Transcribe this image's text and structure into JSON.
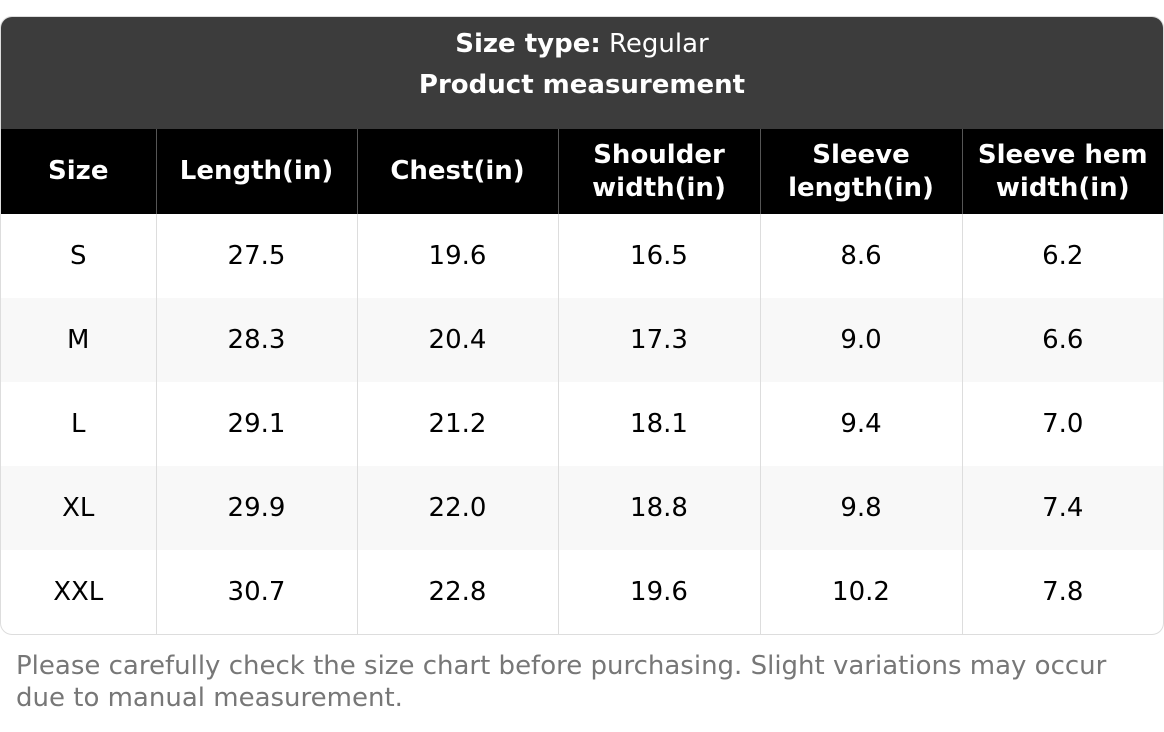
{
  "header": {
    "size_type_label": "Size type:",
    "size_type_value": "Regular",
    "title": "Product measurement"
  },
  "table": {
    "columns": [
      "Size",
      "Length(in)",
      "Chest(in)",
      "Shoulder width(in)",
      "Sleeve length(in)",
      "Sleeve hem width(in)"
    ],
    "rows": [
      [
        "S",
        "27.5",
        "19.6",
        "16.5",
        "8.6",
        "6.2"
      ],
      [
        "M",
        "28.3",
        "20.4",
        "17.3",
        "9.0",
        "6.6"
      ],
      [
        "L",
        "29.1",
        "21.2",
        "18.1",
        "9.4",
        "7.0"
      ],
      [
        "XL",
        "29.9",
        "22.0",
        "18.8",
        "9.8",
        "7.4"
      ],
      [
        "XXL",
        "30.7",
        "22.8",
        "19.6",
        "10.2",
        "7.8"
      ]
    ]
  },
  "note": "Please carefully check the size chart before purchasing. Slight variations may occur due to manual measurement."
}
